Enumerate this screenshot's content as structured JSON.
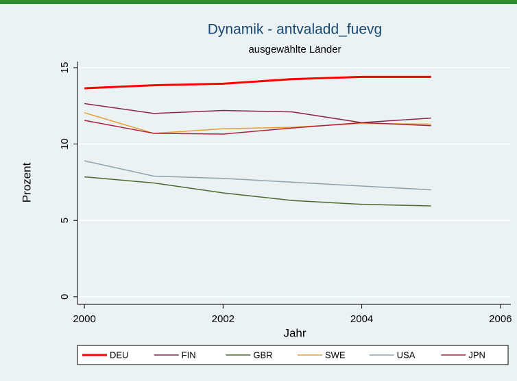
{
  "chart_data": {
    "type": "line",
    "title": "Dynamik - antvaladd_fuevg",
    "subtitle": "ausgewählte Länder",
    "x_label": "Jahr",
    "y_label": "Prozent",
    "x": [
      2000,
      2001,
      2002,
      2003,
      2004,
      2005
    ],
    "series": [
      {
        "name": "DEU",
        "color": "#ff0000",
        "values": [
          13.65,
          13.85,
          13.95,
          14.25,
          14.4,
          14.4
        ]
      },
      {
        "name": "FIN",
        "color": "#8b2252",
        "values": [
          12.65,
          12.0,
          12.2,
          12.1,
          11.4,
          11.7
        ]
      },
      {
        "name": "GBR",
        "color": "#4b6a2b",
        "values": [
          7.85,
          7.45,
          6.8,
          6.3,
          6.05,
          5.95
        ]
      },
      {
        "name": "SWE",
        "color": "#e8a030",
        "values": [
          12.05,
          10.7,
          11.0,
          11.1,
          11.35,
          11.3
        ]
      },
      {
        "name": "USA",
        "color": "#8ea3ad",
        "values": [
          8.9,
          7.9,
          7.75,
          7.5,
          7.25,
          7.0
        ]
      },
      {
        "name": "JPN",
        "color": "#b0203f",
        "values": [
          11.55,
          10.7,
          10.65,
          11.05,
          11.4,
          11.2
        ]
      }
    ],
    "xlim": [
      1999.9,
      2006.15
    ],
    "xticks": [
      2000,
      2002,
      2004,
      2006
    ],
    "ylim": [
      -0.5,
      15.4
    ],
    "yticks": [
      0,
      5,
      10,
      15
    ],
    "grid": true,
    "legend": "bottom"
  }
}
